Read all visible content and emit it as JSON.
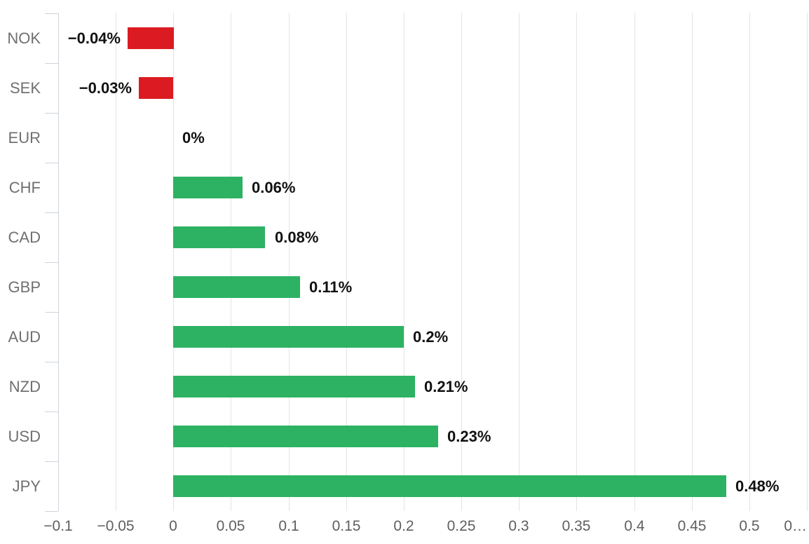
{
  "chart_data": {
    "type": "bar",
    "orientation": "horizontal",
    "title": "",
    "xlabel": "",
    "ylabel": "",
    "categories": [
      "NOK",
      "SEK",
      "EUR",
      "CHF",
      "CAD",
      "GBP",
      "AUD",
      "NZD",
      "USD",
      "JPY"
    ],
    "values": [
      -0.04,
      -0.03,
      0,
      0.06,
      0.08,
      0.11,
      0.2,
      0.21,
      0.23,
      0.48
    ],
    "value_labels": [
      "−0.04%",
      "−0.03%",
      "0%",
      "0.06%",
      "0.08%",
      "0.11%",
      "0.2%",
      "0.21%",
      "0.23%",
      "0.48%"
    ],
    "xlim": [
      -0.1,
      0.55
    ],
    "x_ticks": [
      -0.1,
      -0.05,
      0,
      0.05,
      0.1,
      0.15,
      0.2,
      0.25,
      0.3,
      0.35,
      0.4,
      0.45,
      0.5,
      0.55
    ],
    "x_tick_labels": [
      "−0.1",
      "−0.05",
      "0",
      "0.05",
      "0.1",
      "0.15",
      "0.2",
      "0.25",
      "0.3",
      "0.35",
      "0.4",
      "0.45",
      "0.5",
      "0…"
    ],
    "grid": true,
    "legend": "none",
    "colors": {
      "positive_bar": "#2db263",
      "negative_bar": "#db1b21",
      "gridline": "#e4e4e4",
      "axis_line": "#cfd4d9",
      "category_label": "#707070",
      "tick_label": "#5f5f5f",
      "value_label": "#111111",
      "background": "#ffffff"
    }
  }
}
